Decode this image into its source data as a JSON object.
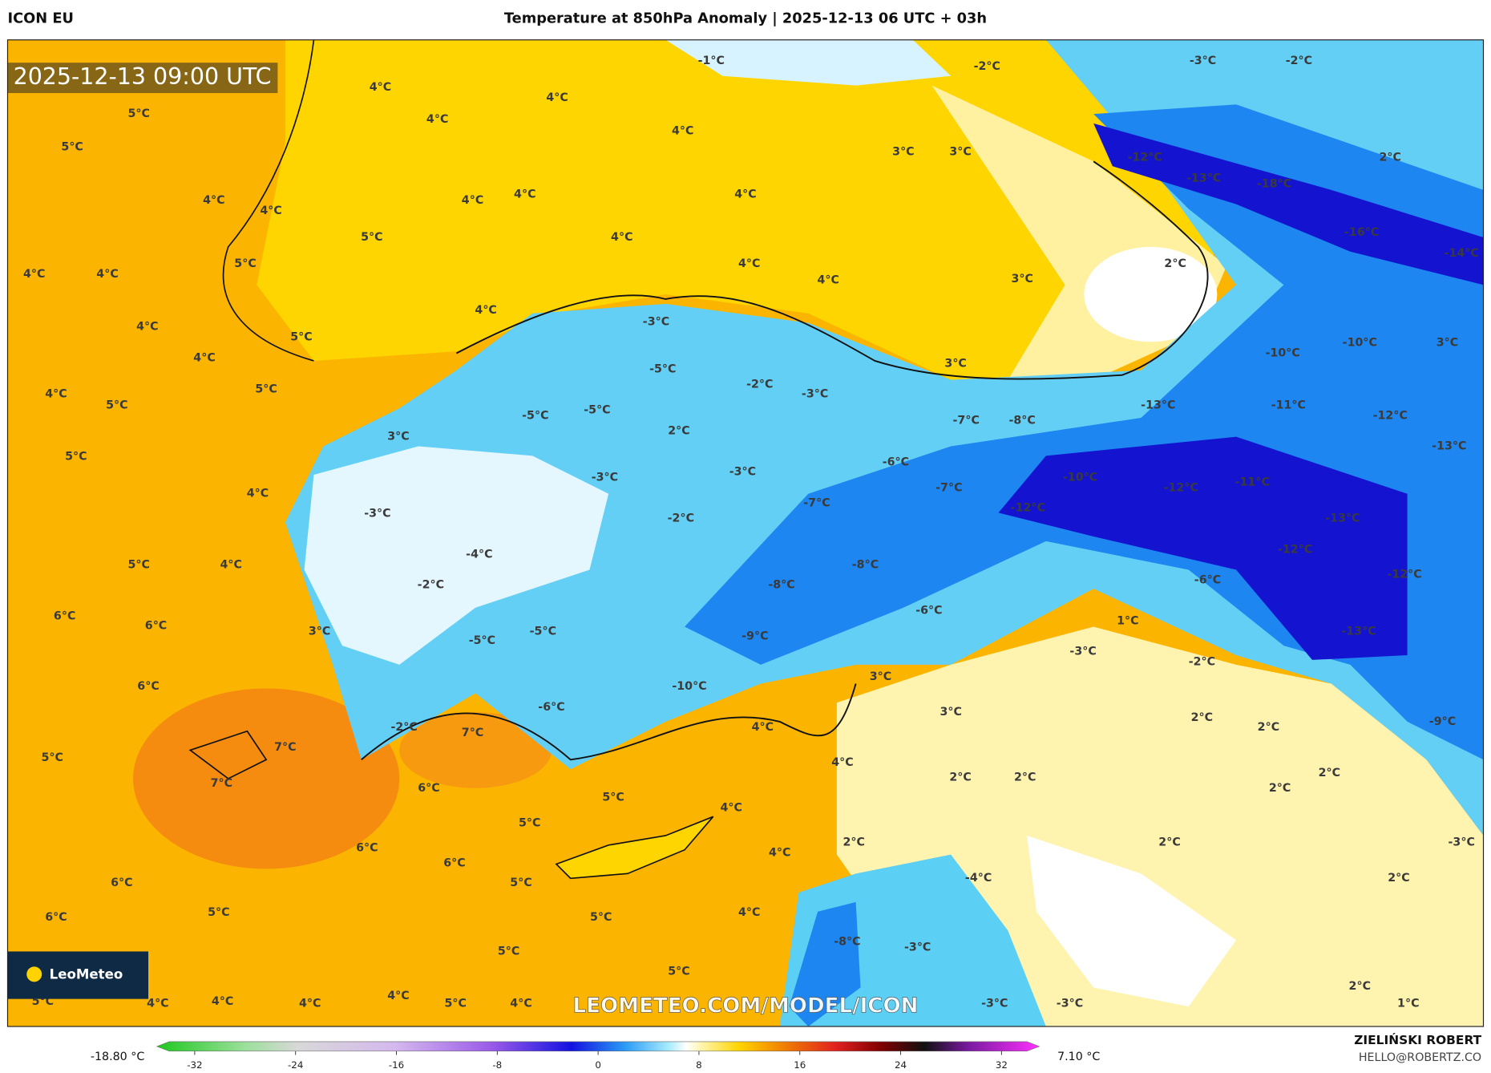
{
  "header": {
    "model": "ICON EU",
    "title": "Temperature at 850hPa Anomaly | 2025-12-13 06 UTC + 03h",
    "author": "ZIELIŃSKI ROBERT",
    "email": "HELLO@ROBERTZ.CO"
  },
  "map": {
    "timestamp": "2025-12-13 09:00 UTC",
    "logo": "LeoMeteo",
    "watermark": "LEOMETEO.COM/MODEL/ICON",
    "labels": [
      "-1°C",
      "-2°C",
      "-3°C",
      "-2°C",
      "4°C",
      "4°C",
      "4°C",
      "4°C",
      "5°C",
      "5°C",
      "3°C",
      "3°C",
      "-12°C",
      "-13°C",
      "-18°C",
      "2°C",
      "4°C",
      "4°C",
      "4°C",
      "4°C",
      "4°C",
      "5°C",
      "4°C",
      "-16°C",
      "-14°C",
      "5°C",
      "4°C",
      "4°C",
      "4°C",
      "4°C",
      "3°C",
      "2°C",
      "4°C",
      "4°C",
      "5°C",
      "-3°C",
      "-10°C",
      "3°C",
      "4°C",
      "-10°C",
      "3°C",
      "-5°C",
      "4°C",
      "5°C",
      "5°C",
      "-2°C",
      "-3°C",
      "-5°C",
      "-5°C",
      "-13°C",
      "-11°C",
      "-12°C",
      "-7°C",
      "-8°C",
      "3°C",
      "2°C",
      "-13°C",
      "5°C",
      "-3°C",
      "-3°C",
      "-6°C",
      "-10°C",
      "4°C",
      "-7°C",
      "-12°C",
      "-11°C",
      "-3°C",
      "-7°C",
      "-12°C",
      "-2°C",
      "-13°C",
      "-4°C",
      "-12°C",
      "5°C",
      "4°C",
      "-8°C",
      "-2°C",
      "-8°C",
      "-6°C",
      "-12°C",
      "6°C",
      "6°C",
      "-6°C",
      "1°C",
      "3°C",
      "-5°C",
      "-13°C",
      "-5°C",
      "-9°C",
      "-3°C",
      "-2°C",
      "6°C",
      "3°C",
      "-10°C",
      "-6°C",
      "3°C",
      "2°C",
      "2°C",
      "-9°C",
      "-2°C",
      "7°C",
      "4°C",
      "5°C",
      "7°C",
      "4°C",
      "2°C",
      "2°C",
      "2°C",
      "7°C",
      "6°C",
      "2°C",
      "5°C",
      "4°C",
      "5°C",
      "2°C",
      "2°C",
      "-3°C",
      "6°C",
      "4°C",
      "6°C",
      "6°C",
      "5°C",
      "-4°C",
      "2°C",
      "5°C",
      "5°C",
      "4°C",
      "6°C",
      "-8°C",
      "-3°C",
      "5°C",
      "5°C",
      "2°C",
      "5°C",
      "4°C",
      "4°C",
      "4°C",
      "4°C",
      "5°C",
      "4°C",
      "-3°C",
      "-3°C",
      "1°C"
    ]
  },
  "colorbar": {
    "min_label": "-18.80 °C",
    "max_label": "7.10 °C",
    "lim": [
      -35,
      35
    ],
    "ticks": [
      -32,
      -24,
      -16,
      -8,
      0,
      8,
      16,
      24,
      32
    ]
  }
}
